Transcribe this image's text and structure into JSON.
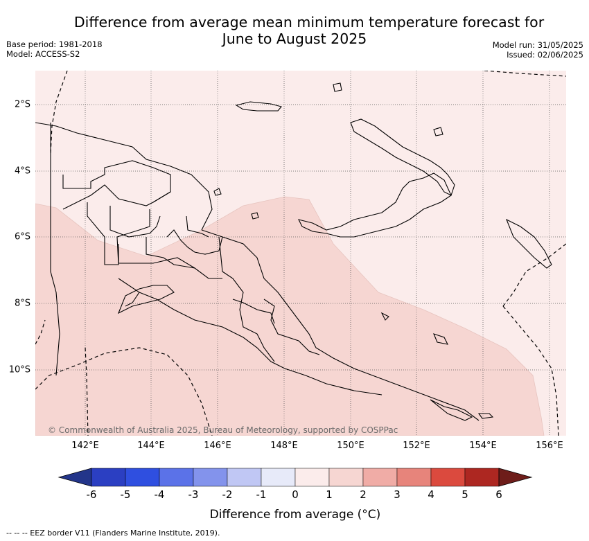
{
  "title": {
    "line1": "Difference from average mean minimum temperature forecast for",
    "line2": "June to August 2025"
  },
  "meta_left": {
    "base_period": "Base period: 1981-2018",
    "model": "Model: ACCESS-S2"
  },
  "meta_right": {
    "model_run": "Model run: 31/05/2025",
    "issued": "Issued: 02/06/2025"
  },
  "lat_labels": [
    "2°S",
    "4°S",
    "6°S",
    "8°S",
    "10°S"
  ],
  "lon_labels": [
    "142°E",
    "144°E",
    "146°E",
    "148°E",
    "150°E",
    "152°E",
    "154°E",
    "156°E"
  ],
  "copyright": "© Commonwealth of Australia 2025, Bureau of Meteorology, supported by COSPPac",
  "colorbar": {
    "title": "Difference from average (°C)",
    "ticks": [
      "-6",
      "-5",
      "-4",
      "-3",
      "-2",
      "-1",
      "0",
      "1",
      "2",
      "3",
      "4",
      "5",
      "6"
    ],
    "colors": [
      "#23358a",
      "#2b3fc2",
      "#2f4fe0",
      "#5b72e8",
      "#8393ec",
      "#c0c7f4",
      "#e7eaf9",
      "#fbeceb",
      "#f6d6d2",
      "#f0aca6",
      "#e7847b",
      "#db4a3e",
      "#ad2721",
      "#6e1d1a"
    ]
  },
  "map_fill": {
    "light": "#fbeceb",
    "medium": "#f6d6d2"
  },
  "footnote": "-- -- -- EEZ border V11 (Flanders Marine Institute, 2019)."
}
